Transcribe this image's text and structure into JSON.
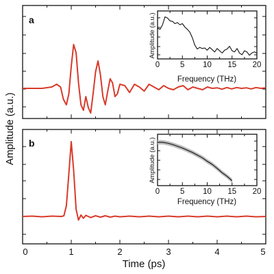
{
  "chart_data": {
    "type": "line",
    "xlabel": "Time (ps)",
    "ylabel": "Amplitude (a.u.)",
    "x_ticks": [
      "0",
      "1",
      "2",
      "3",
      "4",
      "5"
    ],
    "xlim": [
      0,
      5
    ],
    "panels": [
      {
        "label": "a",
        "series_color": "#d83a2a",
        "x": [
          0,
          0.2,
          0.4,
          0.6,
          0.7,
          0.78,
          0.84,
          0.9,
          0.95,
          1.0,
          1.05,
          1.1,
          1.15,
          1.2,
          1.25,
          1.3,
          1.35,
          1.4,
          1.45,
          1.5,
          1.55,
          1.6,
          1.65,
          1.7,
          1.75,
          1.8,
          1.85,
          1.9,
          1.95,
          2.0,
          2.1,
          2.2,
          2.3,
          2.4,
          2.5,
          2.6,
          2.7,
          2.8,
          2.9,
          3.0,
          3.1,
          3.2,
          3.3,
          3.4,
          3.5,
          3.6,
          3.7,
          3.8,
          3.9,
          4.0,
          4.1,
          4.2,
          4.3,
          4.4,
          4.5,
          4.6,
          4.7,
          4.8,
          4.9,
          5.0
        ],
        "y": [
          0,
          0,
          0,
          0.05,
          0.15,
          0.05,
          -0.4,
          -0.6,
          -0.2,
          0.8,
          1.6,
          1.3,
          0.2,
          -0.6,
          -0.8,
          -0.3,
          -0.7,
          -0.9,
          -0.2,
          0.6,
          1.0,
          0.5,
          -0.3,
          -0.6,
          -0.1,
          0.35,
          0.2,
          -0.3,
          -0.2,
          0.15,
          0.1,
          -0.15,
          0.15,
          0.05,
          -0.1,
          0.15,
          0.05,
          -0.05,
          0.1,
          0.0,
          -0.05,
          0.05,
          0.1,
          -0.05,
          0.05,
          0.0,
          -0.05,
          0.05,
          0.0,
          0.02,
          -0.03,
          0.03,
          -0.02,
          0.03,
          0.0,
          0.02,
          -0.02,
          0.03,
          0.0,
          0.02
        ],
        "inset": {
          "xlabel": "Frequency (THz)",
          "ylabel": "Amplitude (a.u.)",
          "x_ticks": [
            "0",
            "5",
            "10",
            "15",
            "20"
          ],
          "xlim": [
            0,
            20
          ],
          "x": [
            0,
            0.5,
            1,
            1.5,
            2,
            2.5,
            3,
            3.5,
            4,
            4.5,
            5,
            5.5,
            6,
            6.5,
            7,
            7.5,
            8,
            8.5,
            9,
            9.5,
            10,
            10.5,
            11,
            11.5,
            12,
            12.5,
            13,
            13.5,
            14,
            14.5,
            15,
            15.5,
            16,
            16.5,
            17,
            17.5,
            18,
            18.5,
            19,
            19.5,
            20
          ],
          "y": [
            0.72,
            0.7,
            0.78,
            0.92,
            0.9,
            0.85,
            0.84,
            0.8,
            0.82,
            0.78,
            0.8,
            0.74,
            0.7,
            0.65,
            0.55,
            0.42,
            0.35,
            0.38,
            0.36,
            0.37,
            0.33,
            0.38,
            0.34,
            0.3,
            0.36,
            0.32,
            0.28,
            0.33,
            0.35,
            0.4,
            0.32,
            0.3,
            0.36,
            0.28,
            0.25,
            0.32,
            0.3,
            0.24,
            0.28,
            0.3,
            0.28
          ]
        }
      },
      {
        "label": "b",
        "series_color": "#d83a2a",
        "x": [
          0,
          0.2,
          0.4,
          0.6,
          0.8,
          0.85,
          0.9,
          0.95,
          1.0,
          1.05,
          1.1,
          1.15,
          1.2,
          1.25,
          1.3,
          1.4,
          1.5,
          1.6,
          1.7,
          1.8,
          1.9,
          2.0,
          2.2,
          2.4,
          2.6,
          2.8,
          3.0,
          3.2,
          3.4,
          3.6,
          3.8,
          4.0,
          4.2,
          4.4,
          4.6,
          4.8,
          5.0
        ],
        "y": [
          0,
          0.01,
          -0.01,
          0.01,
          0.0,
          0.02,
          0.3,
          1.2,
          2.1,
          1.3,
          0.2,
          -0.1,
          0.04,
          -0.05,
          0.03,
          -0.03,
          0.02,
          -0.02,
          0.02,
          -0.02,
          0.01,
          -0.01,
          0.01,
          -0.01,
          0.01,
          -0.01,
          0.01,
          -0.01,
          0.01,
          -0.01,
          0.01,
          -0.01,
          0.01,
          -0.01,
          0.01,
          -0.01,
          0.0
        ],
        "inset": {
          "xlabel": "Frequency (THz)",
          "ylabel": "Amplitude (a.u.)",
          "x_ticks": [
            "0",
            "5",
            "10",
            "15",
            "20"
          ],
          "xlim": [
            0,
            20
          ],
          "x": [
            0,
            1,
            2,
            3,
            4,
            5,
            6,
            7,
            8,
            9,
            10,
            11,
            12,
            13,
            14,
            15
          ],
          "y": [
            0.95,
            0.95,
            0.93,
            0.9,
            0.86,
            0.82,
            0.77,
            0.72,
            0.66,
            0.6,
            0.52,
            0.45,
            0.36,
            0.26,
            0.18,
            0.08
          ]
        }
      }
    ]
  }
}
